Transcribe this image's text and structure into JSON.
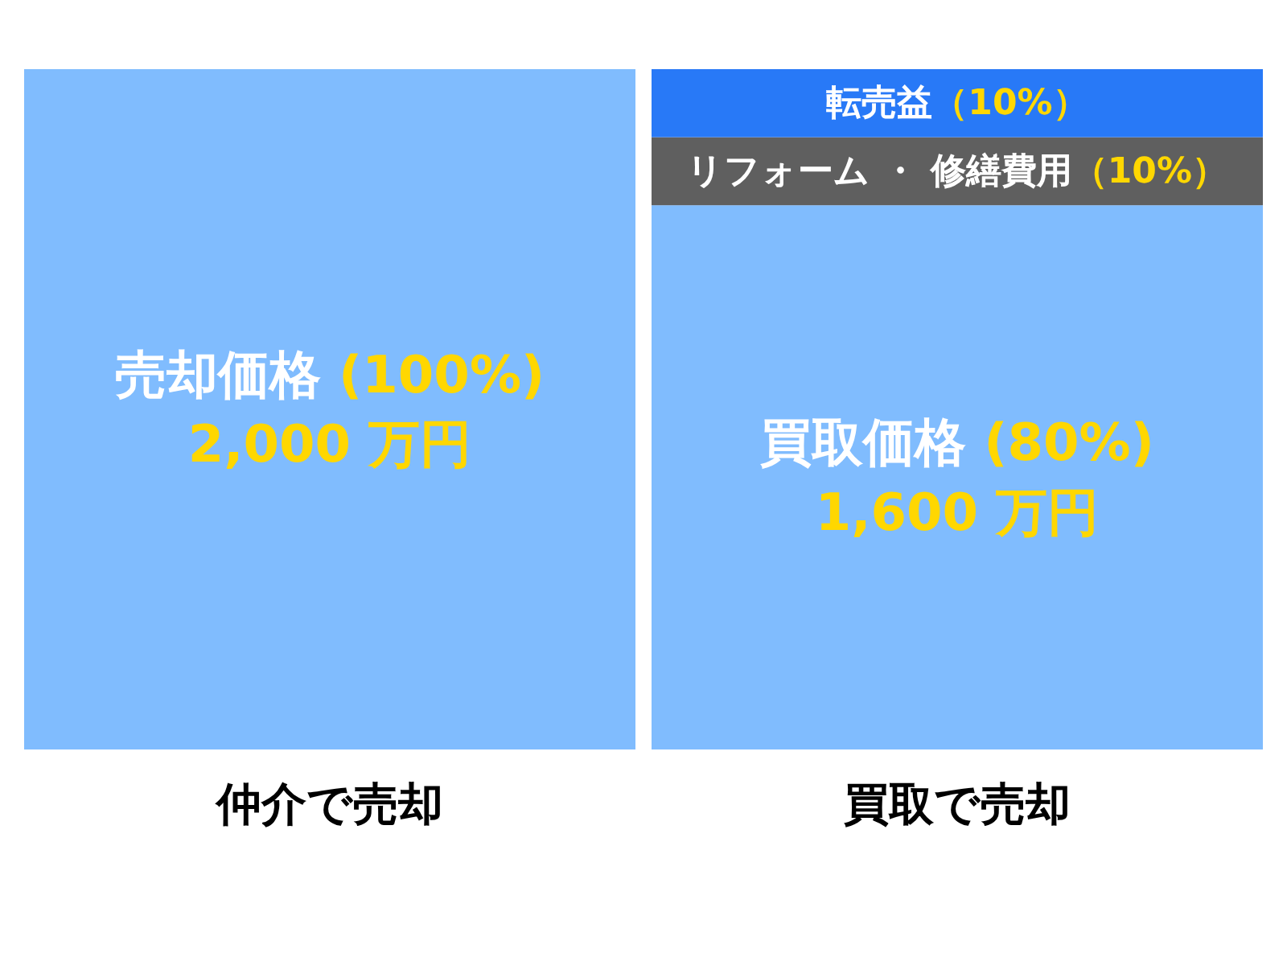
{
  "chart_data": {
    "type": "bar",
    "stacked": true,
    "categories": [
      "仲介で売却",
      "買取で売却"
    ],
    "series": [
      {
        "color": "#80bcfe",
        "values": [
          100,
          80
        ],
        "value_labels": [
          "売却価格 (100%)\n2,000 万円",
          "買取価格  (80%)\n1,600 万円"
        ]
      },
      {
        "color": "#5f5f5f",
        "values": [
          null,
          10
        ],
        "value_labels": [
          null,
          "リフォーム ・ 修繕費用（10%）"
        ]
      },
      {
        "color": "#2879f7",
        "values": [
          null,
          10
        ],
        "value_labels": [
          null,
          "転売益（10%）"
        ]
      }
    ]
  }
}
